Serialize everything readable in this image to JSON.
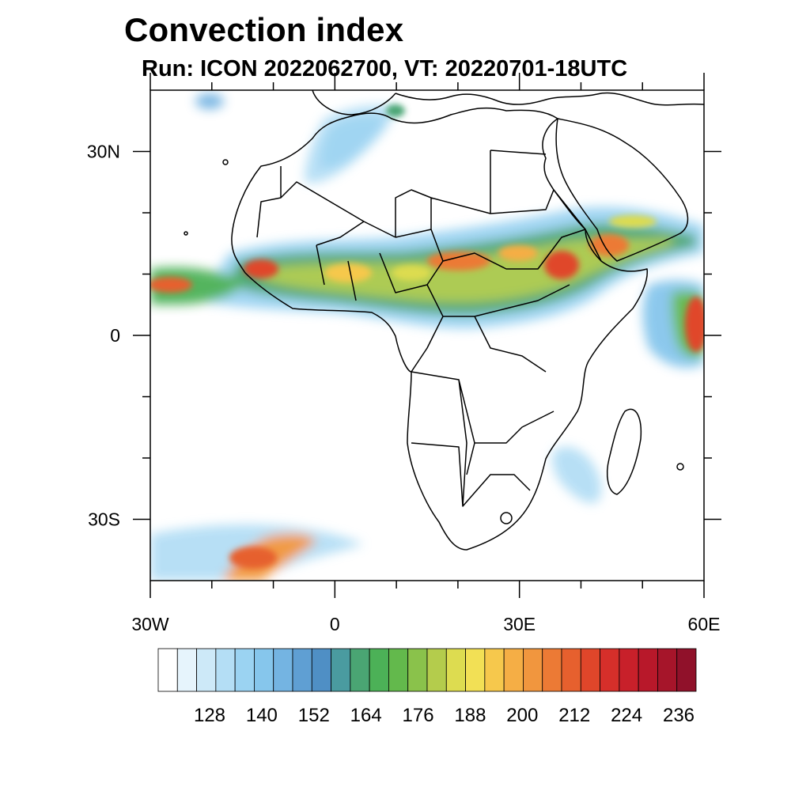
{
  "title": "Convection index",
  "subtitle": "Run: ICON 2022062700,  VT: 20220701-18UTC",
  "map": {
    "projection": "lat-lon",
    "lon_range": [
      -30,
      60
    ],
    "lat_range": [
      -40,
      40
    ],
    "x_ticks": [
      {
        "lon": -30,
        "label": "30W"
      },
      {
        "lon": 0,
        "label": "0"
      },
      {
        "lon": 30,
        "label": "30E"
      },
      {
        "lon": 60,
        "label": "60E"
      }
    ],
    "y_ticks": [
      {
        "lat": 30,
        "label": "30N"
      },
      {
        "lat": 0,
        "label": "0"
      },
      {
        "lat": -30,
        "label": "30S"
      }
    ],
    "minor_lon_ticks": [
      -20,
      -10,
      10,
      20,
      40,
      50
    ],
    "minor_lat_ticks": [
      -20,
      -10,
      10,
      20
    ]
  },
  "colorbar": {
    "labels": [
      "128",
      "140",
      "152",
      "164",
      "176",
      "188",
      "200",
      "212",
      "224",
      "236"
    ],
    "colors": [
      "#ffffff",
      "#e6f4fc",
      "#cde9f8",
      "#b4def5",
      "#9bd3f2",
      "#86c6ec",
      "#74b4e2",
      "#5f9fd3",
      "#4f8fc5",
      "#4a9ba0",
      "#4aa573",
      "#4cb157",
      "#63b94c",
      "#8ac24b",
      "#b4cc4c",
      "#dddc50",
      "#f2e055",
      "#f6c84c",
      "#f5ae45",
      "#f1963e",
      "#ec7a35",
      "#e6602e",
      "#e0462a",
      "#d62f2a",
      "#c8202a",
      "#b8182a",
      "#a6152a",
      "#90112a"
    ],
    "range": [
      116,
      242
    ],
    "interval": 4.5
  }
}
